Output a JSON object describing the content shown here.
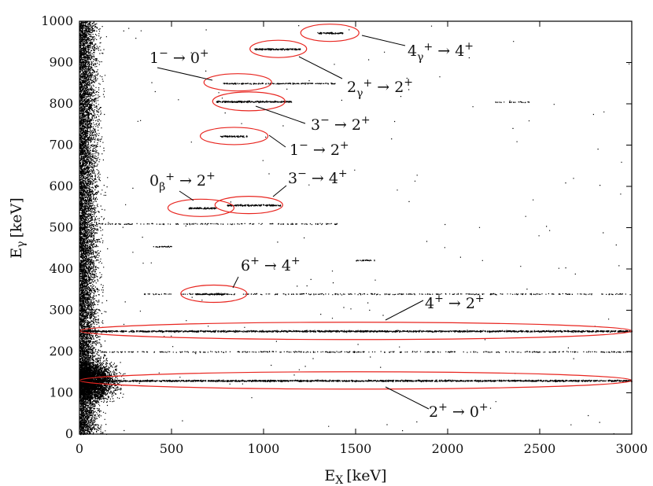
{
  "chart_data": {
    "type": "scatter",
    "xlabel": "E",
    "xlabel_sub": "X",
    "xlabel_unit": "[keV]",
    "ylabel": "E",
    "ylabel_sub": "γ",
    "ylabel_unit": "[keV]",
    "xlim": [
      0,
      3000
    ],
    "ylim": [
      0,
      1000
    ],
    "xticks": [
      "0",
      "500",
      "1000",
      "1500",
      "2000",
      "2500",
      "3000"
    ],
    "yticks": [
      "0",
      "100",
      "200",
      "300",
      "400",
      "500",
      "600",
      "700",
      "800",
      "900",
      "1000"
    ],
    "grid": false,
    "colors": {
      "points": "#000000",
      "ellipses": "#e8251f",
      "text": "#111111"
    },
    "bands": [
      {
        "x": [
          0,
          3000
        ],
        "y": 130,
        "density": "high"
      },
      {
        "x": [
          0,
          3000
        ],
        "y": 250,
        "density": "high"
      },
      {
        "x": [
          0,
          3000
        ],
        "y": 200,
        "density": "low"
      },
      {
        "x": [
          350,
          3000
        ],
        "y": 340,
        "density": "low"
      },
      {
        "x": [
          100,
          1400
        ],
        "y": 510,
        "density": "low"
      },
      {
        "x": [
          630,
          800
        ],
        "y": 340,
        "density": "high"
      },
      {
        "x": [
          590,
          740
        ],
        "y": 548,
        "density": "high"
      },
      {
        "x": [
          800,
          1090
        ],
        "y": 555,
        "density": "high"
      },
      {
        "x": [
          760,
          910
        ],
        "y": 722,
        "density": "high"
      },
      {
        "x": [
          740,
          1150
        ],
        "y": 806,
        "density": "high"
      },
      {
        "x": [
          780,
          1390
        ],
        "y": 850,
        "density": "medium"
      },
      {
        "x": [
          950,
          1200
        ],
        "y": 933,
        "density": "high"
      },
      {
        "x": [
          1290,
          1430
        ],
        "y": 972,
        "density": "high"
      },
      {
        "x": [
          400,
          500
        ],
        "y": 455,
        "density": "medium"
      },
      {
        "x": [
          1500,
          1600
        ],
        "y": 422,
        "density": "medium"
      },
      {
        "x": [
          2250,
          2450
        ],
        "y": 805,
        "density": "low"
      }
    ],
    "annotations": [
      {
        "id": "a-4g-4",
        "text": "4γ⁺ → 4⁺",
        "base": "4",
        "sub": "γ",
        "tail": "+ → 4+",
        "target": [
          1360,
          972
        ]
      },
      {
        "id": "a-2g-2",
        "text": "2γ⁺ → 2⁺",
        "base": "2",
        "sub": "γ",
        "tail": "+ → 2+",
        "target": [
          1080,
          933
        ]
      },
      {
        "id": "a-1m-0",
        "text": "1⁻ → 0⁺",
        "target": [
          860,
          852
        ]
      },
      {
        "id": "a-3m-2",
        "text": "3⁻ → 2⁺",
        "target": [
          920,
          806
        ]
      },
      {
        "id": "a-1m-2",
        "text": "1⁻ → 2⁺",
        "target": [
          840,
          722
        ]
      },
      {
        "id": "a-0b-2",
        "text": "0β⁺ → 2⁺",
        "base": "0",
        "sub": "β",
        "tail": "+ → 2+",
        "target": [
          660,
          548
        ]
      },
      {
        "id": "a-3m-4",
        "text": "3⁻ → 4⁺",
        "target": [
          920,
          555
        ]
      },
      {
        "id": "a-6-4",
        "text": "6⁺ → 4⁺",
        "target": [
          730,
          340
        ]
      },
      {
        "id": "a-4-2",
        "text": "4⁺ → 2⁺",
        "target": [
          1500,
          250
        ]
      },
      {
        "id": "a-2-0",
        "text": "2⁺ → 0⁺",
        "target": [
          1650,
          130
        ]
      }
    ]
  }
}
